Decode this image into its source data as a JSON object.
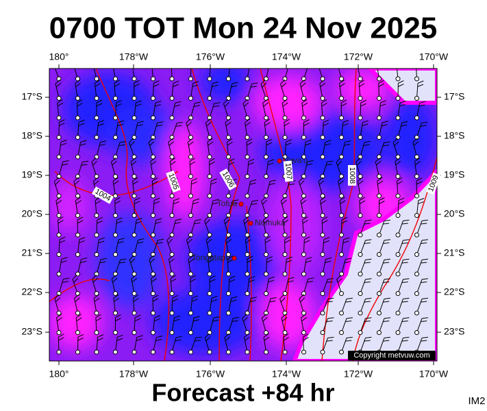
{
  "title": "0700 TOT Mon 24 Nov 2025",
  "footer": "Forecast +84 hr",
  "image_id": "IM2",
  "copyright": "Copyright metvuw.com",
  "map": {
    "lon_labels": [
      "180°",
      "178°W",
      "176°W",
      "174°W",
      "172°W",
      "170°W"
    ],
    "lat_labels": [
      "17°S",
      "18°S",
      "19°S",
      "20°S",
      "21°S",
      "22°S",
      "23°S"
    ],
    "places": [
      "Vava'u",
      "Tofua",
      "Nomuka",
      "Tongatapu"
    ],
    "isobar_labels": [
      "1004",
      "1005",
      "1006",
      "1007",
      "1008",
      "1009"
    ]
  }
}
